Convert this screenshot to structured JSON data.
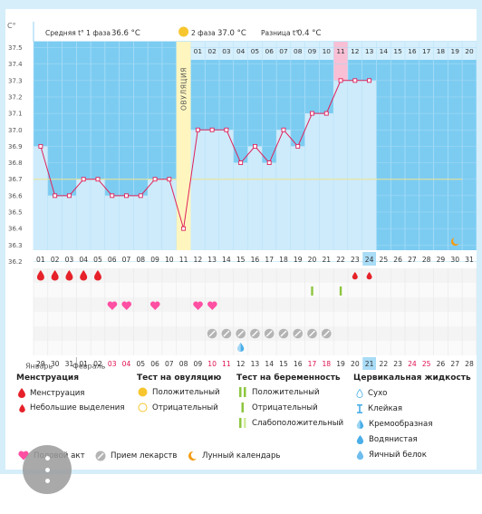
{
  "header": {
    "phase1_label": "Средняя t° 1 фаза",
    "phase1_value": "36.6 °C",
    "phase2_label": "2 фаза",
    "phase2_value": "37.0 °C",
    "diff_label": "Разница t°",
    "diff_value": "0.4 °C",
    "ovulation_label": "ОВУЛЯЦИЯ"
  },
  "chart_data": {
    "type": "line",
    "y_unit": "C°",
    "ylim": [
      36.2,
      37.5
    ],
    "yticks": [
      "37.5",
      "37.4",
      "37.3",
      "37.2",
      "37.1",
      "37.0",
      "36.9",
      "36.8",
      "36.7",
      "36.6",
      "36.5",
      "36.4",
      "36.3",
      "36.2"
    ],
    "days": [
      "01",
      "02",
      "03",
      "04",
      "05",
      "06",
      "07",
      "08",
      "09",
      "10",
      "11",
      "12",
      "13",
      "14",
      "15",
      "16",
      "17",
      "18",
      "19",
      "20",
      "21",
      "22",
      "23",
      "24",
      "25",
      "26",
      "27",
      "28",
      "29",
      "30",
      "31"
    ],
    "temps": [
      36.9,
      36.6,
      36.6,
      36.7,
      36.7,
      36.6,
      36.6,
      36.6,
      36.7,
      36.7,
      36.4,
      37.0,
      37.0,
      37.0,
      36.8,
      36.9,
      36.8,
      37.0,
      36.9,
      37.1,
      37.1,
      37.3,
      37.3,
      37.3
    ],
    "phase2_cycle_days": [
      "01",
      "02",
      "03",
      "04",
      "05",
      "06",
      "07",
      "08",
      "09",
      "10",
      "11",
      "12",
      "13",
      "14",
      "15",
      "16",
      "17",
      "18",
      "19",
      "20"
    ],
    "phase2_highlight_day": "11",
    "coverline": 36.7,
    "ovulation_day": "11",
    "today_day": "24",
    "grid": true
  },
  "markers": {
    "menstruation_days": [
      "01",
      "02",
      "03",
      "04",
      "05"
    ],
    "light_discharge_days": [
      "23",
      "24"
    ],
    "pregnancy_test_faint_days": [
      "20",
      "22"
    ],
    "intercourse_days": [
      "06",
      "07",
      "09",
      "12",
      "13"
    ],
    "medication_days": [
      "13",
      "14",
      "15",
      "16",
      "17",
      "18",
      "19",
      "20",
      "21"
    ],
    "cervical_day": "15"
  },
  "calendar": {
    "dates": [
      "29",
      "30",
      "31",
      "01",
      "02",
      "03",
      "04",
      "05",
      "06",
      "07",
      "08",
      "09",
      "10",
      "11",
      "12",
      "13",
      "14",
      "15",
      "16",
      "17",
      "18",
      "19",
      "20",
      "21",
      "22",
      "23",
      "24",
      "25",
      "26",
      "27",
      "28"
    ],
    "weekend_indices": [
      5,
      6,
      12,
      13,
      19,
      20,
      26,
      27
    ],
    "today_index": 23,
    "month1": "Январь",
    "month2": "Февраль",
    "moon_day": "30"
  },
  "legend": {
    "menstruation_title": "Менструация",
    "menstruation": "Менструация",
    "light_discharge": "Небольшие выделения",
    "ovulation_title": "Тест на овуляцию",
    "ov_positive": "Положительный",
    "ov_negative": "Отрицательный",
    "pregnancy_title": "Тест на беременность",
    "preg_positive": "Положительный",
    "preg_negative": "Отрицательный",
    "preg_faint": "Слабоположительный",
    "cervical_title": "Цервикальная жидкость",
    "cerv_dry": "Сухо",
    "cerv_sticky": "Клейкая",
    "cerv_creamy": "Кремообразная",
    "cerv_watery": "Водянистая",
    "cerv_eggwhite": "Яичный белок",
    "intercourse": "Половой акт",
    "medication": "Прием лекарств",
    "lunar": "Лунный календарь"
  },
  "colors": {
    "chart_bg": "#7cccf2",
    "phase2_band": "#d6effc",
    "column_fill": "#cdebfb",
    "line": "#e0215a",
    "ovulation": "#fff6bf",
    "blood": "#e62129",
    "heart": "#ff4fa3",
    "pill": "#b4b4b4",
    "green": "#8dc63f",
    "weekend": "#e01050",
    "today": "#a9dcf6",
    "phase2_highlight": "#f8bfd5",
    "moon": "#f39c12",
    "drop": "#4aaee8"
  }
}
